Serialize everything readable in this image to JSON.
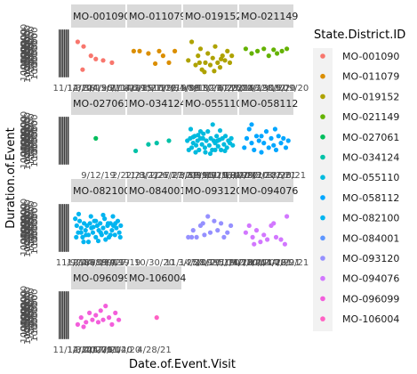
{
  "chart_data": {
    "type": "scatter",
    "xlabel": "Date.of.Event.Visit",
    "ylabel": "Duration.of.Event",
    "legend": {
      "title": "State.District.ID",
      "placement": "right"
    },
    "facet_layout": {
      "columns": 4,
      "rows": 4
    },
    "x_tick_overlap_label": "11/14/21",
    "y_tick_overlap_label": "1000000",
    "panels": [
      {
        "id": "MO-001090",
        "color": "#F8766D",
        "x_tick_labels": [
          "11/14/21",
          "1/3/18",
          "2/12/19",
          "3/4/20",
          "4/5/21",
          "5/7/18",
          "6/11/19"
        ],
        "points": [
          [
            0.08,
            0.75
          ],
          [
            0.2,
            0.65
          ],
          [
            0.35,
            0.45
          ],
          [
            0.45,
            0.38
          ],
          [
            0.6,
            0.35
          ],
          [
            0.78,
            0.3
          ],
          [
            0.18,
            0.15
          ]
        ]
      },
      {
        "id": "MO-011079",
        "color": "#DB8E00",
        "x_tick_labels": [
          "1/14/19",
          "4/2/19",
          "6/15/19",
          "8/27/19",
          "10/9/19",
          "12/31/19"
        ],
        "points": [
          [
            0.08,
            0.55
          ],
          [
            0.2,
            0.55
          ],
          [
            0.38,
            0.5
          ],
          [
            0.52,
            0.28
          ],
          [
            0.68,
            0.45
          ],
          [
            0.8,
            0.3
          ],
          [
            0.92,
            0.55
          ],
          [
            0.6,
            0.55
          ]
        ]
      },
      {
        "id": "MO-019152",
        "color": "#AEA200",
        "x_tick_labels": [
          "2/4/18",
          "5/9/19",
          "8/13/20",
          "11/17/21",
          "2/21/22",
          "6/25/20"
        ],
        "points": [
          [
            0.05,
            0.35
          ],
          [
            0.12,
            0.75
          ],
          [
            0.2,
            0.25
          ],
          [
            0.25,
            0.45
          ],
          [
            0.3,
            0.6
          ],
          [
            0.33,
            0.15
          ],
          [
            0.4,
            0.3
          ],
          [
            0.45,
            0.5
          ],
          [
            0.5,
            0.25
          ],
          [
            0.55,
            0.4
          ],
          [
            0.6,
            0.65
          ],
          [
            0.65,
            0.3
          ],
          [
            0.7,
            0.2
          ],
          [
            0.75,
            0.45
          ],
          [
            0.8,
            0.35
          ],
          [
            0.85,
            0.55
          ],
          [
            0.9,
            0.3
          ],
          [
            0.94,
            0.45
          ],
          [
            0.38,
            0.1
          ],
          [
            0.58,
            0.12
          ],
          [
            0.72,
            0.38
          ],
          [
            0.28,
            0.3
          ]
        ]
      },
      {
        "id": "MO-021149",
        "color": "#64B200",
        "x_tick_labels": [
          "2/6/19",
          "7/14/19",
          "11/22/19",
          "3/30/20",
          "8/5/20",
          "12/9/20"
        ],
        "points": [
          [
            0.08,
            0.6
          ],
          [
            0.2,
            0.5
          ],
          [
            0.32,
            0.55
          ],
          [
            0.45,
            0.6
          ],
          [
            0.55,
            0.45
          ],
          [
            0.65,
            0.58
          ],
          [
            0.72,
            0.5
          ],
          [
            0.82,
            0.55
          ],
          [
            0.92,
            0.6
          ]
        ]
      },
      {
        "id": "MO-027061",
        "color": "#00BD5C",
        "x_tick_labels": [
          "9/12/19"
        ],
        "points": [
          [
            0.45,
            0.55
          ]
        ]
      },
      {
        "id": "MO-034124",
        "color": "#00C1A7",
        "x_tick_labels": [
          "2/22/21",
          "11/8/21",
          "3/1/21",
          "2/27/21",
          "6/27/21"
        ],
        "points": [
          [
            0.12,
            0.28
          ],
          [
            0.38,
            0.42
          ],
          [
            0.55,
            0.45
          ],
          [
            0.8,
            0.5
          ]
        ]
      },
      {
        "id": "MO-055110",
        "color": "#00BADE",
        "x_tick_labels": [
          "1/3/19",
          "3/8/19",
          "5/9/19",
          "7/10/19",
          "9/12/19",
          "11/13/19",
          "1/8/20"
        ],
        "points": [
          [
            0.03,
            0.5
          ],
          [
            0.06,
            0.3
          ],
          [
            0.09,
            0.55
          ],
          [
            0.12,
            0.35
          ],
          [
            0.15,
            0.45
          ],
          [
            0.18,
            0.6
          ],
          [
            0.21,
            0.4
          ],
          [
            0.24,
            0.5
          ],
          [
            0.27,
            0.3
          ],
          [
            0.3,
            0.55
          ],
          [
            0.33,
            0.42
          ],
          [
            0.36,
            0.65
          ],
          [
            0.39,
            0.35
          ],
          [
            0.42,
            0.5
          ],
          [
            0.45,
            0.7
          ],
          [
            0.48,
            0.4
          ],
          [
            0.51,
            0.55
          ],
          [
            0.54,
            0.3
          ],
          [
            0.57,
            0.5
          ],
          [
            0.6,
            0.45
          ],
          [
            0.63,
            0.6
          ],
          [
            0.66,
            0.38
          ],
          [
            0.69,
            0.52
          ],
          [
            0.72,
            0.3
          ],
          [
            0.75,
            0.55
          ],
          [
            0.78,
            0.42
          ],
          [
            0.81,
            0.6
          ],
          [
            0.84,
            0.35
          ],
          [
            0.87,
            0.5
          ],
          [
            0.9,
            0.45
          ],
          [
            0.93,
            0.55
          ],
          [
            0.96,
            0.4
          ],
          [
            0.1,
            0.75
          ],
          [
            0.55,
            0.85
          ],
          [
            0.2,
            0.25
          ],
          [
            0.3,
            0.7
          ],
          [
            0.7,
            0.72
          ],
          [
            0.5,
            0.22
          ],
          [
            0.4,
            0.25
          ],
          [
            0.6,
            0.3
          ],
          [
            0.8,
            0.28
          ],
          [
            0.25,
            0.62
          ],
          [
            0.35,
            0.55
          ],
          [
            0.15,
            0.58
          ],
          [
            0.65,
            0.5
          ]
        ]
      },
      {
        "id": "MO-058112",
        "color": "#00A6FF",
        "x_tick_labels": [
          "1/14/20",
          "4/29/20",
          "8/3/20",
          "11/18/20",
          "3/2/21",
          "6/8/21"
        ],
        "points": [
          [
            0.05,
            0.35
          ],
          [
            0.1,
            0.55
          ],
          [
            0.15,
            0.75
          ],
          [
            0.2,
            0.45
          ],
          [
            0.25,
            0.3
          ],
          [
            0.3,
            0.6
          ],
          [
            0.35,
            0.5
          ],
          [
            0.4,
            0.25
          ],
          [
            0.45,
            0.45
          ],
          [
            0.5,
            0.7
          ],
          [
            0.55,
            0.35
          ],
          [
            0.6,
            0.55
          ],
          [
            0.65,
            0.4
          ],
          [
            0.7,
            0.3
          ],
          [
            0.75,
            0.6
          ],
          [
            0.8,
            0.45
          ],
          [
            0.85,
            0.55
          ],
          [
            0.9,
            0.35
          ],
          [
            0.95,
            0.5
          ],
          [
            0.2,
            0.85
          ],
          [
            0.68,
            0.75
          ],
          [
            0.4,
            0.6
          ]
        ]
      },
      {
        "id": "MO-082100",
        "color": "#00B4F0",
        "x_tick_labels": [
          "11/9/18",
          "1/2/19",
          "2/24/19",
          "4/18/19",
          "6/11/19",
          "8/4/19",
          "9/27/19"
        ],
        "points": [
          [
            0.03,
            0.7
          ],
          [
            0.06,
            0.55
          ],
          [
            0.09,
            0.4
          ],
          [
            0.12,
            0.65
          ],
          [
            0.15,
            0.5
          ],
          [
            0.18,
            0.3
          ],
          [
            0.21,
            0.6
          ],
          [
            0.24,
            0.45
          ],
          [
            0.27,
            0.55
          ],
          [
            0.3,
            0.35
          ],
          [
            0.33,
            0.6
          ],
          [
            0.36,
            0.5
          ],
          [
            0.39,
            0.4
          ],
          [
            0.42,
            0.65
          ],
          [
            0.45,
            0.3
          ],
          [
            0.48,
            0.55
          ],
          [
            0.51,
            0.45
          ],
          [
            0.54,
            0.6
          ],
          [
            0.57,
            0.35
          ],
          [
            0.6,
            0.5
          ],
          [
            0.63,
            0.7
          ],
          [
            0.66,
            0.4
          ],
          [
            0.69,
            0.55
          ],
          [
            0.72,
            0.3
          ],
          [
            0.75,
            0.6
          ],
          [
            0.78,
            0.45
          ],
          [
            0.81,
            0.55
          ],
          [
            0.84,
            0.35
          ],
          [
            0.87,
            0.5
          ],
          [
            0.9,
            0.65
          ],
          [
            0.93,
            0.4
          ],
          [
            0.96,
            0.55
          ],
          [
            0.05,
            0.3
          ],
          [
            0.1,
            0.8
          ],
          [
            0.2,
            0.2
          ],
          [
            0.35,
            0.75
          ],
          [
            0.5,
            0.22
          ],
          [
            0.65,
            0.25
          ],
          [
            0.8,
            0.75
          ],
          [
            0.95,
            0.3
          ],
          [
            0.15,
            0.4
          ],
          [
            0.25,
            0.35
          ],
          [
            0.4,
            0.52
          ],
          [
            0.55,
            0.4
          ],
          [
            0.7,
            0.6
          ],
          [
            0.85,
            0.6
          ],
          [
            0.3,
            0.2
          ],
          [
            0.6,
            0.78
          ],
          [
            0.45,
            0.65
          ],
          [
            0.75,
            0.35
          ]
        ]
      },
      {
        "id": "MO-084001",
        "color": "#5D96FF",
        "x_tick_labels": [
          "10/30/20"
        ],
        "points": []
      },
      {
        "id": "MO-093120",
        "color": "#9590FF",
        "x_tick_labels": [
          "11/14/21",
          "3/25/19",
          "7/8/19",
          "10/20/19",
          "2/1/20",
          "5/14/20"
        ],
        "points": [
          [
            0.05,
            0.3
          ],
          [
            0.15,
            0.45
          ],
          [
            0.22,
            0.3
          ],
          [
            0.3,
            0.55
          ],
          [
            0.38,
            0.35
          ],
          [
            0.45,
            0.75
          ],
          [
            0.5,
            0.4
          ],
          [
            0.58,
            0.65
          ],
          [
            0.65,
            0.45
          ],
          [
            0.72,
            0.6
          ],
          [
            0.78,
            0.3
          ],
          [
            0.85,
            0.4
          ],
          [
            0.92,
            0.55
          ],
          [
            0.35,
            0.6
          ],
          [
            0.12,
            0.3
          ]
        ]
      },
      {
        "id": "MO-094076",
        "color": "#D277FF",
        "x_tick_labels": [
          "1/12/20",
          "4/13/20",
          "7/14/20",
          "10/14/20",
          "1/14/21",
          "4/18/21",
          "7/29/21"
        ],
        "points": [
          [
            0.08,
            0.4
          ],
          [
            0.15,
            0.55
          ],
          [
            0.22,
            0.3
          ],
          [
            0.3,
            0.45
          ],
          [
            0.38,
            0.2
          ],
          [
            0.45,
            0.35
          ],
          [
            0.52,
            0.25
          ],
          [
            0.6,
            0.55
          ],
          [
            0.7,
            0.3
          ],
          [
            0.8,
            0.25
          ],
          [
            0.88,
            0.15
          ],
          [
            0.92,
            0.75
          ],
          [
            0.25,
            0.15
          ],
          [
            0.65,
            0.6
          ]
        ]
      },
      {
        "id": "MO-096099",
        "color": "#F35EDB",
        "x_tick_labels": [
          "11/14/21",
          "1/3/20",
          "2/12/20",
          "4/4/20",
          "5/7/20",
          "7/11/20",
          "9/14/20"
        ],
        "points": [
          [
            0.08,
            0.3
          ],
          [
            0.15,
            0.45
          ],
          [
            0.2,
            0.25
          ],
          [
            0.25,
            0.35
          ],
          [
            0.32,
            0.55
          ],
          [
            0.38,
            0.4
          ],
          [
            0.45,
            0.5
          ],
          [
            0.5,
            0.35
          ],
          [
            0.55,
            0.6
          ],
          [
            0.6,
            0.4
          ],
          [
            0.65,
            0.7
          ],
          [
            0.72,
            0.45
          ],
          [
            0.78,
            0.3
          ],
          [
            0.85,
            0.55
          ],
          [
            0.92,
            0.4
          ]
        ]
      },
      {
        "id": "MO-106004",
        "color": "#FF61C3",
        "x_tick_labels": [
          "4/28/21"
        ],
        "points": [
          [
            0.55,
            0.45
          ]
        ]
      }
    ]
  }
}
